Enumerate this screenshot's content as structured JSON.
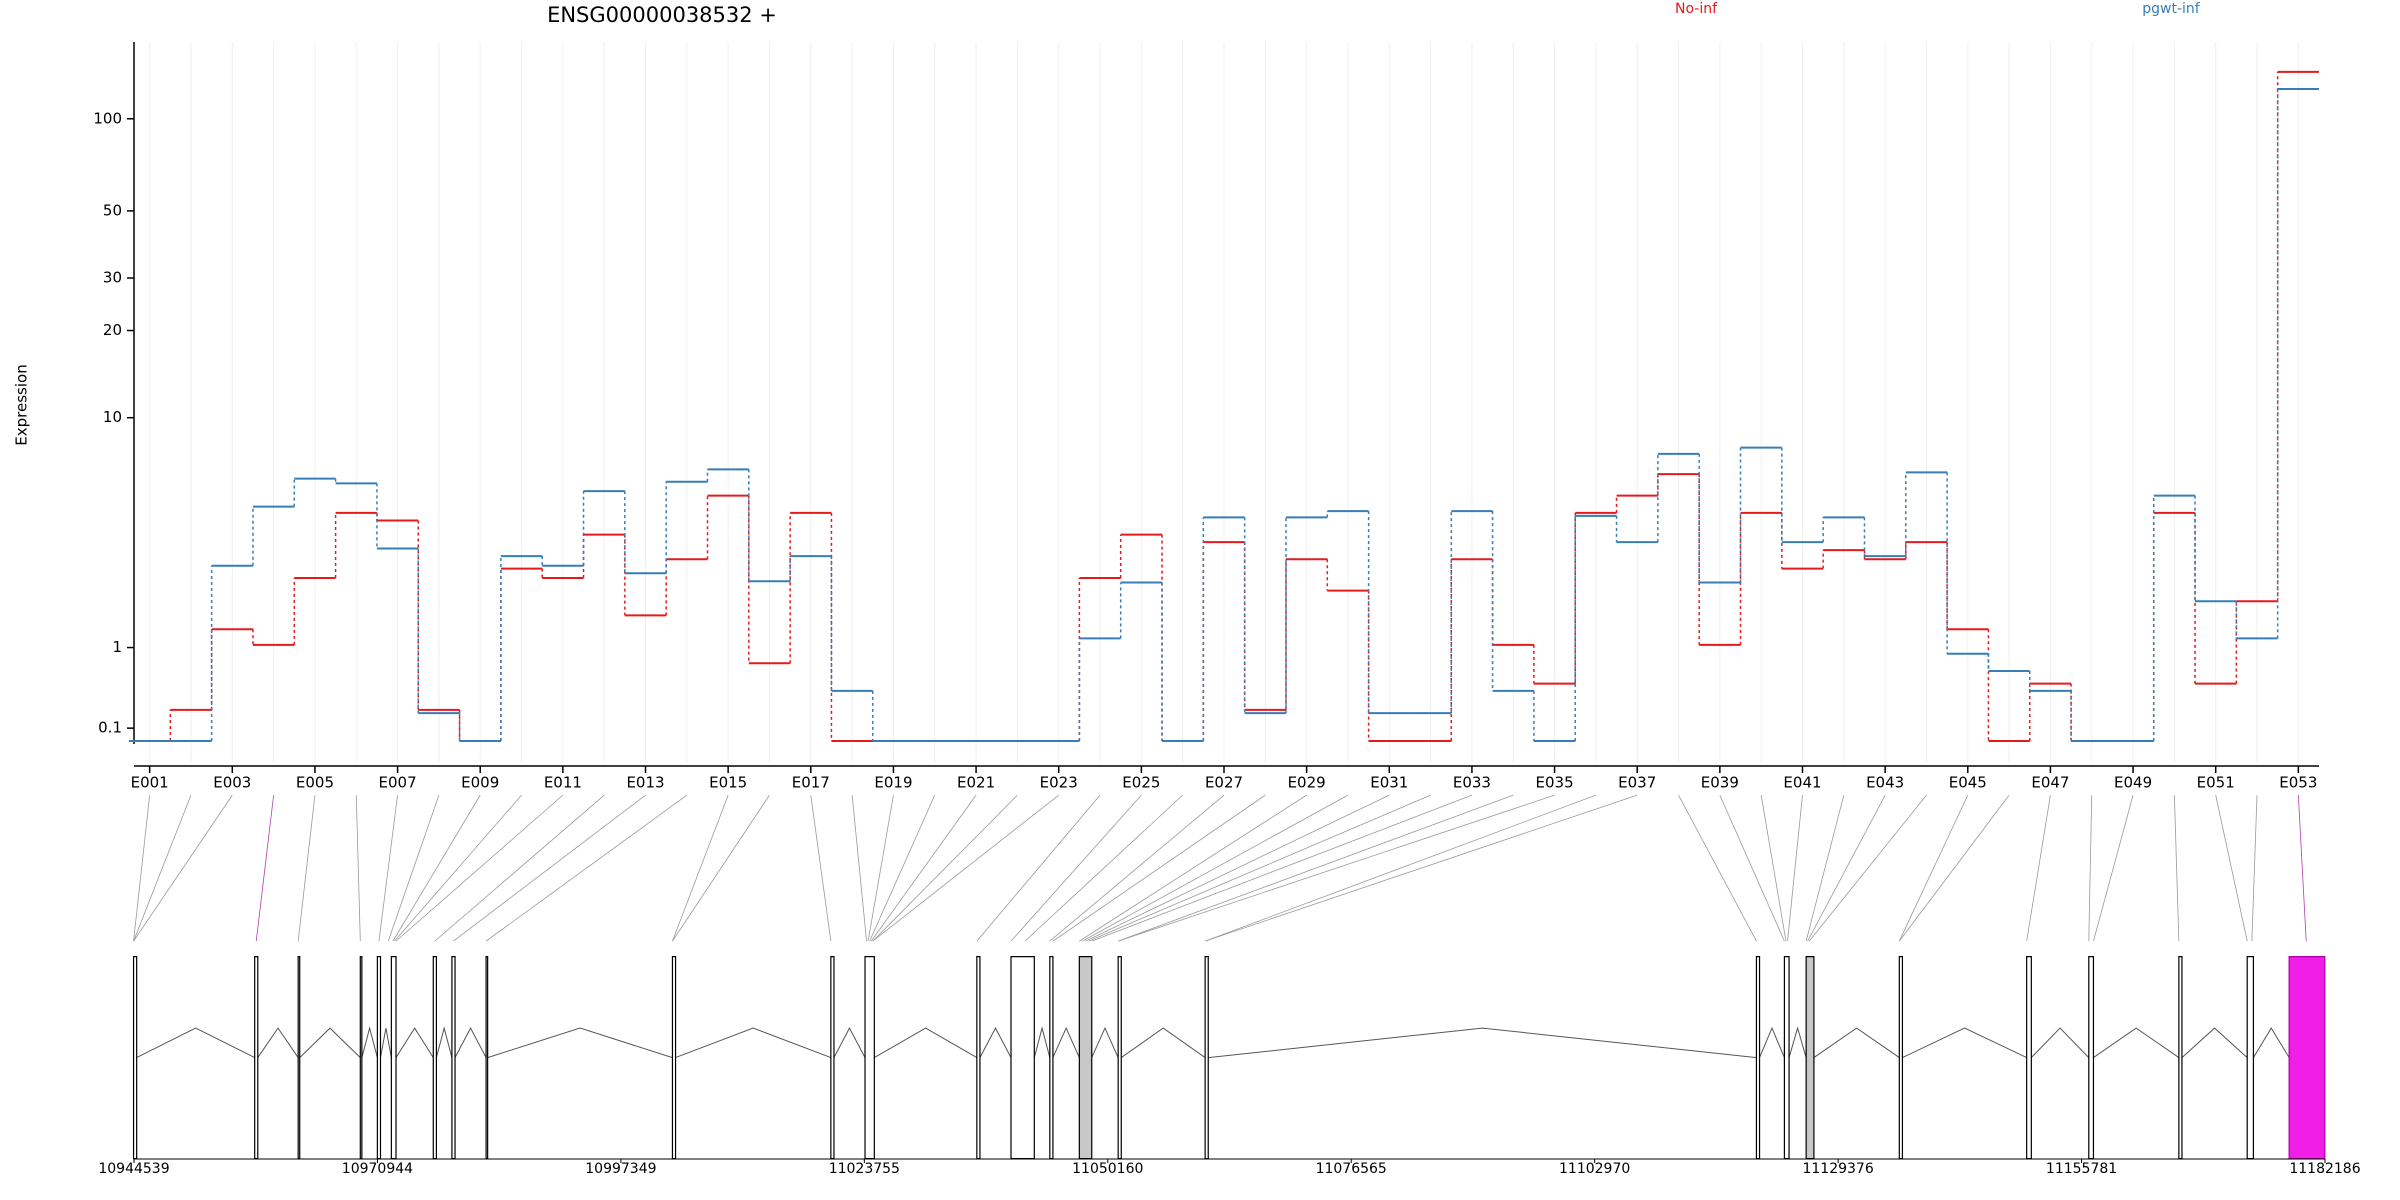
{
  "chart_data": {
    "type": "step",
    "title": "ENSG00000038532 +",
    "ylabel": "Expression",
    "yscale": "log1p",
    "ylim": [
      0,
      171
    ],
    "yticks": [
      0.1,
      1,
      10,
      20,
      30,
      50,
      100
    ],
    "grid": true,
    "legend": "top-right",
    "categories": [
      "E001",
      null,
      "E003",
      null,
      "E005",
      null,
      "E007",
      null,
      "E009",
      null,
      "E011",
      null,
      "E013",
      null,
      "E015",
      null,
      "E017",
      null,
      "E019",
      null,
      "E021",
      null,
      "E023",
      null,
      "E025",
      null,
      "E027",
      null,
      "E029",
      null,
      "E031",
      null,
      "E033",
      null,
      "E035",
      null,
      "E037",
      null,
      "E039",
      null,
      "E041",
      null,
      "E043",
      null,
      "E045",
      null,
      "E047",
      null,
      "E049",
      null,
      "E051",
      null,
      "E053"
    ],
    "series": [
      {
        "name": "No-inf",
        "color": "#e41a1c",
        "values": [
          0,
          0.26,
          1.29,
          1.04,
          2.35,
          4.43,
          4.13,
          0.26,
          0,
          2.59,
          2.35,
          3.62,
          1.54,
          2.85,
          5.17,
          0.78,
          4.43,
          0,
          0,
          0,
          0,
          0,
          0,
          2.35,
          3.62,
          0,
          3.37,
          0.26,
          2.85,
          2.05,
          0,
          0,
          2.85,
          1.04,
          0.53,
          4.43,
          5.17,
          6.24,
          1.04,
          4.43,
          2.59,
          3.12,
          2.85,
          3.37,
          1.29,
          0,
          0.53,
          0,
          0,
          4.43,
          0.53,
          1.82,
          142
        ]
      },
      {
        "name": "pgwt-inf",
        "color": "#377eb8",
        "values": [
          0,
          0,
          2.67,
          4.69,
          6.0,
          5.76,
          3.17,
          0.23,
          0,
          2.94,
          2.67,
          5.38,
          2.47,
          5.84,
          6.5,
          2.27,
          2.94,
          0.45,
          0,
          0,
          0,
          0,
          0,
          1.14,
          2.24,
          0,
          4.25,
          0.23,
          4.25,
          4.5,
          0.23,
          0.23,
          4.5,
          0.45,
          0,
          4.31,
          3.37,
          7.41,
          2.24,
          7.81,
          3.37,
          4.25,
          2.94,
          6.33,
          0.91,
          0.68,
          0.45,
          0,
          0,
          5.17,
          1.82,
          1.14,
          125
        ]
      }
    ],
    "genome_axis": {
      "xlim": [
        10944539,
        11182186
      ],
      "xticks": [
        10944539,
        10970944,
        10997349,
        11023755,
        11050160,
        11076565,
        11102970,
        11129376,
        11155781,
        11182186
      ]
    }
  }
}
